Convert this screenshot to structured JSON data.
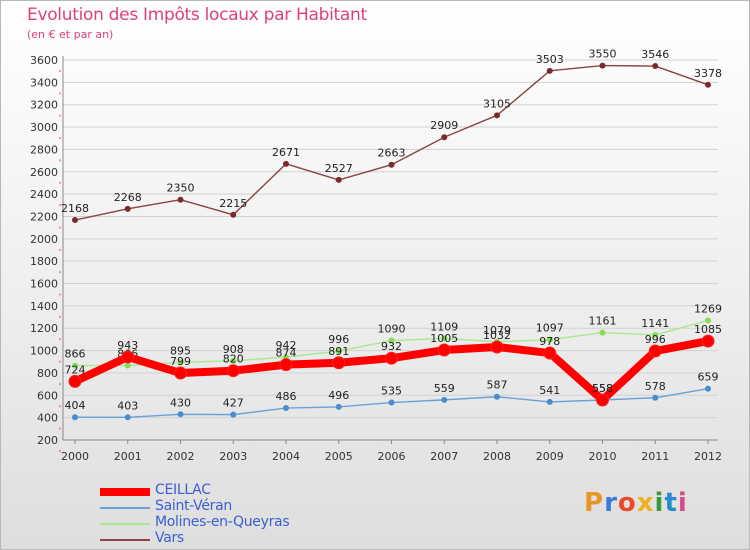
{
  "title": "Evolution des Impôts locaux par Habitant",
  "subtitle": "(en € et par an)",
  "brand": "Proxiti",
  "chart_data": {
    "type": "line",
    "title": "Evolution des Impôts locaux par Habitant",
    "ylabel": "(en € et par an)",
    "xlabel": "",
    "ylim": [
      200,
      3600
    ],
    "y_ticks": [
      200,
      400,
      600,
      800,
      1000,
      1200,
      1400,
      1600,
      1800,
      2000,
      2200,
      2400,
      2600,
      2800,
      3000,
      3200,
      3400,
      3600
    ],
    "categories": [
      "2000",
      "2001",
      "2002",
      "2003",
      "2004",
      "2005",
      "2006",
      "2007",
      "2008",
      "2009",
      "2010",
      "2011",
      "2012"
    ],
    "series": [
      {
        "name": "Vars",
        "color": "#7a2a2a",
        "line_color": "#8a4545",
        "values": [
          2168,
          2268,
          2350,
          2215,
          2671,
          2527,
          2663,
          2909,
          3105,
          3503,
          3550,
          3546,
          3378
        ]
      },
      {
        "name": "Molines-en-Queyras",
        "color": "#88dd55",
        "line_color": "#a8e890",
        "values": [
          866,
          866,
          895,
          908,
          942,
          996,
          1090,
          1109,
          1079,
          1097,
          1161,
          1141,
          1269
        ]
      },
      {
        "name": "Saint-Véran",
        "color": "#4a8ccc",
        "line_color": "#6aa0d8",
        "values": [
          404,
          403,
          430,
          427,
          486,
          496,
          535,
          559,
          587,
          541,
          558,
          578,
          659
        ]
      },
      {
        "name": "CEILLAC",
        "color": "#ff0000",
        "line_color": "#ff0000",
        "values": [
          724,
          943,
          799,
          820,
          874,
          891,
          932,
          1005,
          1032,
          978,
          558,
          996,
          1085
        ]
      }
    ],
    "legend_order": [
      "CEILLAC",
      "Saint-Véran",
      "Molines-en-Queyras",
      "Vars"
    ]
  }
}
